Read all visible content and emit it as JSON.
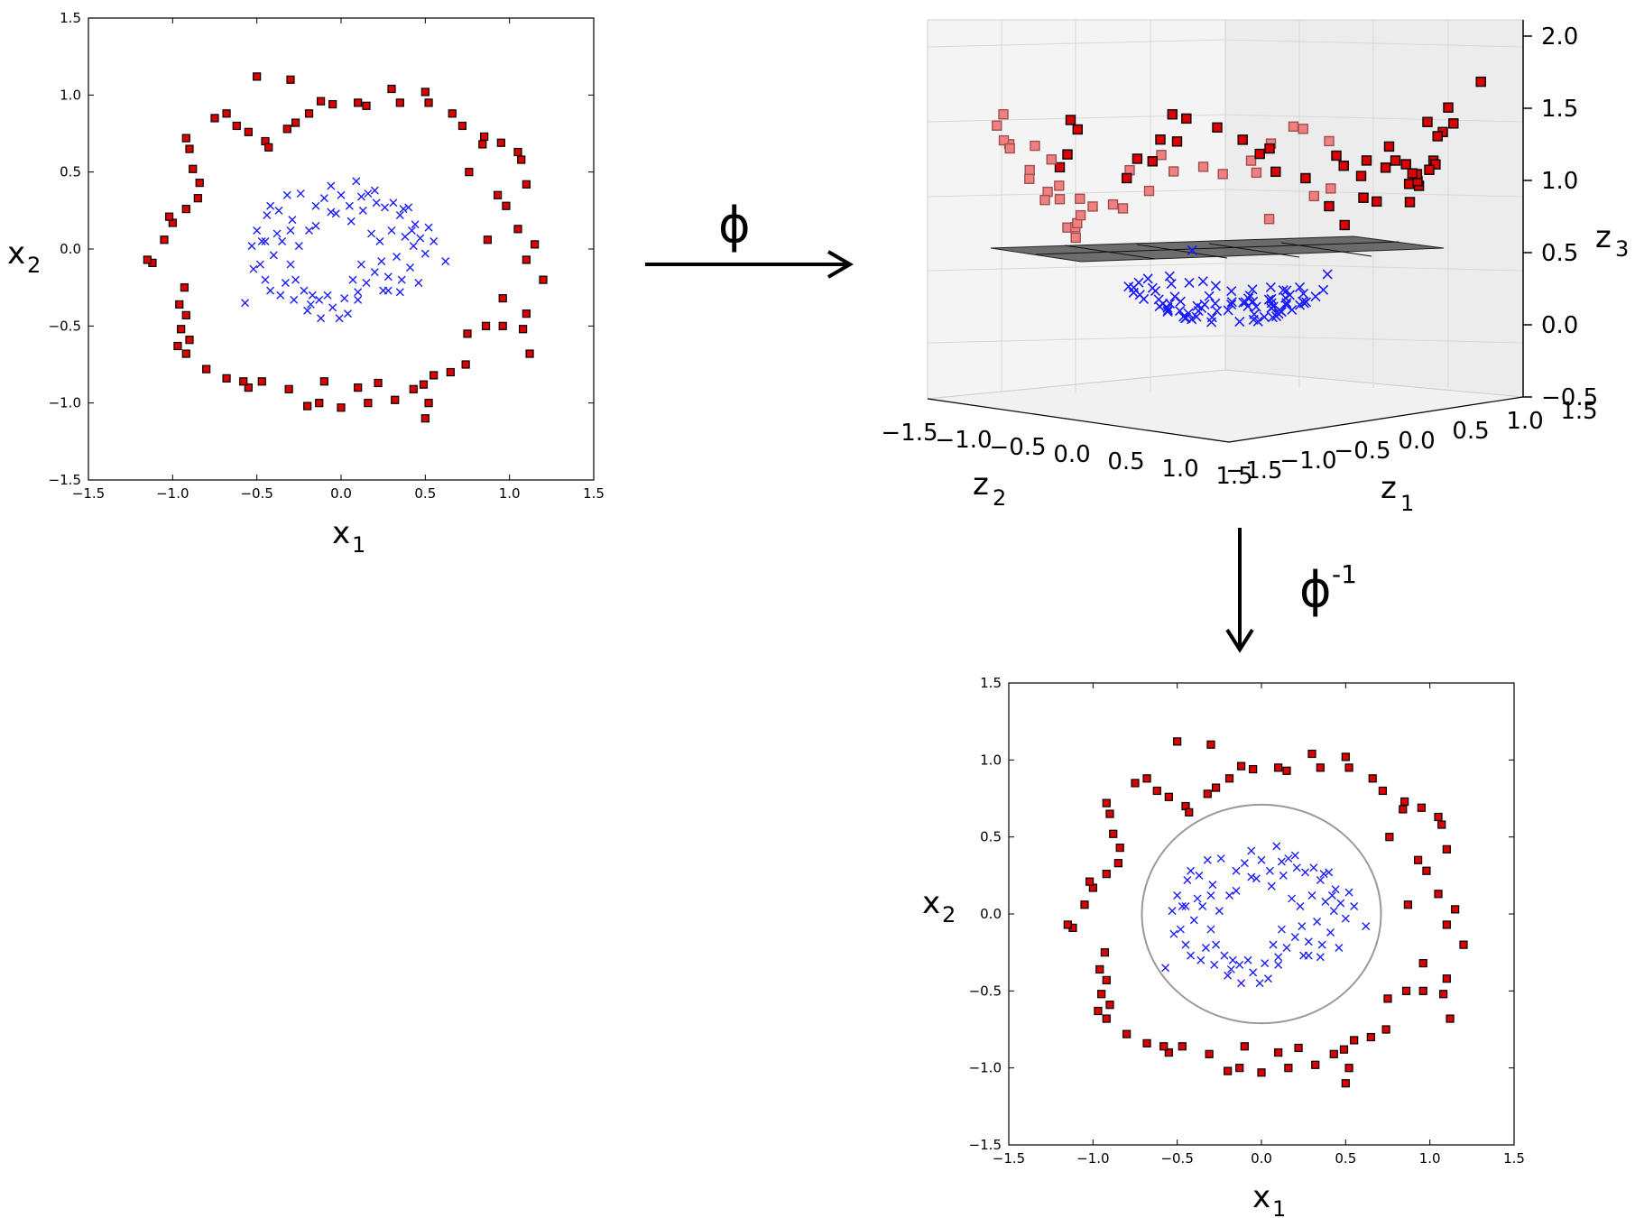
{
  "figure": {
    "phi_label": "ϕ",
    "phi_inv_label": "ϕ",
    "phi_inv_exponent": "-1"
  },
  "colors": {
    "outer": "#dd0000",
    "outer_edge": "#000000",
    "inner": "#1a1aff",
    "plane": "#444444",
    "boundary": "#999999"
  },
  "chart_data": [
    {
      "id": "input",
      "type": "scatter",
      "title": "",
      "xlabel": "x",
      "xlabel_sub": "1",
      "ylabel": "x",
      "ylabel_sub": "2",
      "xlim": [
        -1.5,
        1.5
      ],
      "ylim": [
        -1.5,
        1.5
      ],
      "xticks": [
        -1.5,
        -1.0,
        -0.5,
        0.0,
        0.5,
        1.0,
        1.5
      ],
      "yticks": [
        -1.5,
        -1.0,
        -0.5,
        0.0,
        0.5,
        1.0,
        1.5
      ],
      "tick_labels": [
        "−1.5",
        "−1.0",
        "−0.5",
        "0.0",
        "0.5",
        "1.0",
        "1.5"
      ],
      "series": [
        {
          "name": "outer",
          "marker": "square",
          "points": [
            [
              -0.5,
              1.12
            ],
            [
              -0.3,
              1.1
            ],
            [
              -0.12,
              0.96
            ],
            [
              -0.05,
              0.94
            ],
            [
              0.1,
              0.95
            ],
            [
              0.15,
              0.93
            ],
            [
              0.3,
              1.04
            ],
            [
              0.35,
              0.95
            ],
            [
              0.5,
              1.02
            ],
            [
              0.52,
              0.95
            ],
            [
              0.66,
              0.88
            ],
            [
              0.72,
              0.8
            ],
            [
              0.85,
              0.73
            ],
            [
              0.95,
              0.69
            ],
            [
              1.05,
              0.63
            ],
            [
              1.07,
              0.58
            ],
            [
              0.84,
              0.68
            ],
            [
              0.76,
              0.5
            ],
            [
              0.93,
              0.35
            ],
            [
              1.1,
              0.42
            ],
            [
              0.98,
              0.28
            ],
            [
              1.05,
              0.13
            ],
            [
              0.87,
              0.06
            ],
            [
              1.15,
              0.03
            ],
            [
              1.1,
              -0.07
            ],
            [
              1.2,
              -0.2
            ],
            [
              0.96,
              -0.32
            ],
            [
              1.1,
              -0.42
            ],
            [
              1.08,
              -0.52
            ],
            [
              0.86,
              -0.5
            ],
            [
              0.96,
              -0.5
            ],
            [
              0.75,
              -0.55
            ],
            [
              1.12,
              -0.68
            ],
            [
              0.74,
              -0.75
            ],
            [
              0.65,
              -0.8
            ],
            [
              0.55,
              -0.82
            ],
            [
              0.49,
              -0.88
            ],
            [
              0.52,
              -1.0
            ],
            [
              0.5,
              -1.1
            ],
            [
              0.43,
              -0.91
            ],
            [
              0.32,
              -0.98
            ],
            [
              0.22,
              -0.87
            ],
            [
              0.16,
              -1.0
            ],
            [
              0.1,
              -0.9
            ],
            [
              0.0,
              -1.03
            ],
            [
              -0.1,
              -0.86
            ],
            [
              -0.13,
              -1.0
            ],
            [
              -0.2,
              -1.02
            ],
            [
              -0.31,
              -0.91
            ],
            [
              -0.47,
              -0.86
            ],
            [
              -0.55,
              -0.9
            ],
            [
              -0.58,
              -0.86
            ],
            [
              -0.68,
              -0.84
            ],
            [
              -0.8,
              -0.78
            ],
            [
              -0.92,
              -0.68
            ],
            [
              -0.97,
              -0.63
            ],
            [
              -0.9,
              -0.59
            ],
            [
              -0.95,
              -0.52
            ],
            [
              -0.92,
              -0.43
            ],
            [
              -0.96,
              -0.36
            ],
            [
              -0.93,
              -0.25
            ],
            [
              -1.12,
              -0.09
            ],
            [
              -1.15,
              -0.07
            ],
            [
              -1.05,
              0.06
            ],
            [
              -1.0,
              0.17
            ],
            [
              -1.02,
              0.21
            ],
            [
              -0.92,
              0.26
            ],
            [
              -0.85,
              0.33
            ],
            [
              -0.84,
              0.43
            ],
            [
              -0.88,
              0.52
            ],
            [
              -0.9,
              0.65
            ],
            [
              -0.92,
              0.72
            ],
            [
              -0.75,
              0.85
            ],
            [
              -0.68,
              0.88
            ],
            [
              -0.62,
              0.8
            ],
            [
              -0.55,
              0.76
            ],
            [
              -0.45,
              0.7
            ],
            [
              -0.43,
              0.66
            ],
            [
              -0.32,
              0.78
            ],
            [
              -0.27,
              0.82
            ],
            [
              -0.19,
              0.88
            ]
          ]
        },
        {
          "name": "inner",
          "marker": "x",
          "points": [
            [
              -0.57,
              -0.35
            ],
            [
              -0.53,
              0.02
            ],
            [
              -0.52,
              -0.13
            ],
            [
              -0.5,
              0.12
            ],
            [
              -0.48,
              -0.1
            ],
            [
              -0.47,
              0.05
            ],
            [
              -0.45,
              -0.2
            ],
            [
              -0.44,
              0.22
            ],
            [
              -0.42,
              -0.27
            ],
            [
              -0.42,
              0.28
            ],
            [
              -0.4,
              -0.04
            ],
            [
              -0.38,
              0.1
            ],
            [
              -0.37,
              0.25
            ],
            [
              -0.36,
              -0.3
            ],
            [
              -0.35,
              0.05
            ],
            [
              -0.33,
              -0.22
            ],
            [
              -0.32,
              0.35
            ],
            [
              -0.3,
              -0.1
            ],
            [
              -0.29,
              0.19
            ],
            [
              -0.28,
              -0.33
            ],
            [
              -0.27,
              -0.2
            ],
            [
              -0.25,
              0.02
            ],
            [
              -0.24,
              0.36
            ],
            [
              -0.22,
              -0.27
            ],
            [
              -0.2,
              -0.4
            ],
            [
              -0.19,
              0.12
            ],
            [
              -0.17,
              -0.3
            ],
            [
              -0.15,
              0.28
            ],
            [
              -0.13,
              -0.33
            ],
            [
              -0.12,
              -0.45
            ],
            [
              -0.1,
              0.33
            ],
            [
              -0.08,
              -0.3
            ],
            [
              -0.06,
              0.41
            ],
            [
              -0.05,
              -0.38
            ],
            [
              -0.03,
              0.23
            ],
            [
              -0.01,
              -0.45
            ],
            [
              0.0,
              0.35
            ],
            [
              0.02,
              -0.32
            ],
            [
              0.04,
              -0.42
            ],
            [
              0.05,
              0.28
            ],
            [
              0.07,
              -0.2
            ],
            [
              0.09,
              0.44
            ],
            [
              0.1,
              -0.33
            ],
            [
              0.12,
              -0.1
            ],
            [
              0.13,
              0.25
            ],
            [
              0.15,
              -0.22
            ],
            [
              0.16,
              0.36
            ],
            [
              0.18,
              0.1
            ],
            [
              0.2,
              -0.15
            ],
            [
              0.21,
              0.3
            ],
            [
              0.23,
              0.05
            ],
            [
              0.24,
              -0.08
            ],
            [
              0.26,
              0.27
            ],
            [
              0.28,
              -0.18
            ],
            [
              0.3,
              0.12
            ],
            [
              0.31,
              0.3
            ],
            [
              0.33,
              -0.05
            ],
            [
              0.35,
              0.22
            ],
            [
              0.36,
              -0.2
            ],
            [
              0.38,
              0.08
            ],
            [
              0.4,
              0.27
            ],
            [
              0.41,
              -0.12
            ],
            [
              0.43,
              0.02
            ],
            [
              0.44,
              0.16
            ],
            [
              0.46,
              -0.22
            ],
            [
              0.47,
              0.07
            ],
            [
              0.5,
              -0.03
            ],
            [
              0.52,
              0.14
            ],
            [
              0.55,
              0.05
            ],
            [
              0.62,
              -0.08
            ],
            [
              0.28,
              -0.27
            ],
            [
              0.35,
              -0.28
            ],
            [
              0.2,
              0.38
            ],
            [
              -0.15,
              0.15
            ],
            [
              0.12,
              0.34
            ],
            [
              0.42,
              0.12
            ],
            [
              0.37,
              0.26
            ],
            [
              0.1,
              -0.28
            ],
            [
              0.25,
              -0.27
            ],
            [
              -0.3,
              0.12
            ],
            [
              -0.45,
              0.05
            ],
            [
              -0.18,
              -0.36
            ],
            [
              0.06,
              0.18
            ],
            [
              -0.06,
              0.24
            ]
          ]
        }
      ]
    },
    {
      "id": "feature-space",
      "type": "scatter3d",
      "xlabel": "z",
      "xlabel_sub": "2",
      "ylabel": "z",
      "ylabel_sub": "1",
      "zlabel": "z",
      "zlabel_sub": "3",
      "z2_ticks": [
        "−1.5",
        "−1.0",
        "−0.5",
        "0.0",
        "0.5",
        "1.0",
        "1.5"
      ],
      "z1_ticks": [
        "−1.5",
        "−1.0",
        "−0.5",
        "0.0",
        "0.5",
        "1.0",
        "1.5"
      ],
      "z3_ticks": [
        "−0.5",
        "0.0",
        "0.5",
        "1.0",
        "1.5",
        "2.0"
      ],
      "z3_values": [
        -0.5,
        0.0,
        0.5,
        1.0,
        1.5,
        2.0
      ],
      "zlim": [
        -0.5,
        2.0
      ],
      "plane_z": 0.55,
      "series": [
        {
          "name": "outer",
          "marker": "square"
        },
        {
          "name": "inner",
          "marker": "x"
        }
      ]
    },
    {
      "id": "decision-boundary",
      "type": "scatter",
      "title": "",
      "xlabel": "x",
      "xlabel_sub": "1",
      "ylabel": "x",
      "ylabel_sub": "2",
      "xlim": [
        -1.5,
        1.5
      ],
      "ylim": [
        -1.5,
        1.5
      ],
      "xticks": [
        -1.5,
        -1.0,
        -0.5,
        0.0,
        0.5,
        1.0,
        1.5
      ],
      "yticks": [
        -1.5,
        -1.0,
        -0.5,
        0.0,
        0.5,
        1.0,
        1.5
      ],
      "tick_labels": [
        "−1.5",
        "−1.0",
        "−0.5",
        "0.0",
        "0.5",
        "1.0",
        "1.5"
      ],
      "boundary": {
        "shape": "circle",
        "center": [
          0,
          0
        ],
        "radius": 0.71
      },
      "series_ref": "input"
    }
  ]
}
